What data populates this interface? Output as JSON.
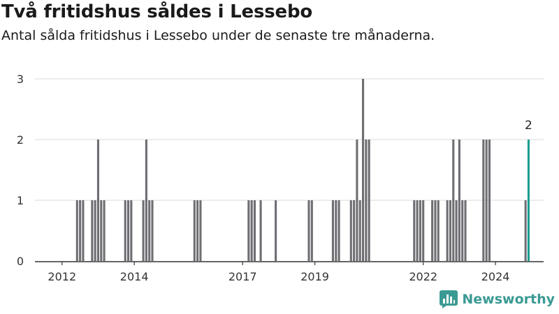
{
  "header": {
    "title": "Två fritidshus såldes i Lessebo",
    "subtitle": "Antal sålda fritidshus i Lessebo under de senaste tre månaderna."
  },
  "brand": {
    "name": "Newsworthy",
    "color": "#3a9a93"
  },
  "colors": {
    "bar": "#6e6e73",
    "highlight": "#1f9e92",
    "grid": "#d9d9d9",
    "axis": "#333333"
  },
  "chart_data": {
    "type": "bar",
    "title": "Två fritidshus såldes i Lessebo",
    "subtitle": "Antal sålda fritidshus i Lessebo under de senaste tre månaderna.",
    "xlabel": "",
    "ylabel": "",
    "x_unit": "month",
    "xlim": [
      "2011-04",
      "2025-05"
    ],
    "ylim": [
      0,
      3
    ],
    "y_ticks": [
      0,
      1,
      2,
      3
    ],
    "x_ticks": [
      {
        "label": "2012",
        "x": "2012-01"
      },
      {
        "label": "2014",
        "x": "2014-01"
      },
      {
        "label": "2017",
        "x": "2017-01"
      },
      {
        "label": "2019",
        "x": "2019-01"
      },
      {
        "label": "2022",
        "x": "2022-01"
      },
      {
        "label": "2024",
        "x": "2024-01"
      }
    ],
    "grid": true,
    "highlight": {
      "x": "2024-12",
      "y": 2,
      "label": "2"
    },
    "points": [
      {
        "x": "2012-06",
        "y": 1
      },
      {
        "x": "2012-07",
        "y": 1
      },
      {
        "x": "2012-08",
        "y": 1
      },
      {
        "x": "2012-11",
        "y": 1
      },
      {
        "x": "2012-12",
        "y": 1
      },
      {
        "x": "2013-01",
        "y": 2
      },
      {
        "x": "2013-02",
        "y": 1
      },
      {
        "x": "2013-03",
        "y": 1
      },
      {
        "x": "2013-10",
        "y": 1
      },
      {
        "x": "2013-11",
        "y": 1
      },
      {
        "x": "2013-12",
        "y": 1
      },
      {
        "x": "2014-04",
        "y": 1
      },
      {
        "x": "2014-05",
        "y": 2
      },
      {
        "x": "2014-06",
        "y": 1
      },
      {
        "x": "2014-07",
        "y": 1
      },
      {
        "x": "2015-09",
        "y": 1
      },
      {
        "x": "2015-10",
        "y": 1
      },
      {
        "x": "2015-11",
        "y": 1
      },
      {
        "x": "2017-03",
        "y": 1
      },
      {
        "x": "2017-04",
        "y": 1
      },
      {
        "x": "2017-05",
        "y": 1
      },
      {
        "x": "2017-07",
        "y": 1
      },
      {
        "x": "2017-12",
        "y": 1
      },
      {
        "x": "2018-11",
        "y": 1
      },
      {
        "x": "2018-12",
        "y": 1
      },
      {
        "x": "2019-07",
        "y": 1
      },
      {
        "x": "2019-08",
        "y": 1
      },
      {
        "x": "2019-09",
        "y": 1
      },
      {
        "x": "2020-01",
        "y": 1
      },
      {
        "x": "2020-02",
        "y": 1
      },
      {
        "x": "2020-03",
        "y": 2
      },
      {
        "x": "2020-04",
        "y": 1
      },
      {
        "x": "2020-05",
        "y": 3
      },
      {
        "x": "2020-06",
        "y": 2
      },
      {
        "x": "2020-07",
        "y": 2
      },
      {
        "x": "2021-10",
        "y": 1
      },
      {
        "x": "2021-11",
        "y": 1
      },
      {
        "x": "2021-12",
        "y": 1
      },
      {
        "x": "2022-01",
        "y": 1
      },
      {
        "x": "2022-04",
        "y": 1
      },
      {
        "x": "2022-05",
        "y": 1
      },
      {
        "x": "2022-06",
        "y": 1
      },
      {
        "x": "2022-09",
        "y": 1
      },
      {
        "x": "2022-10",
        "y": 1
      },
      {
        "x": "2022-11",
        "y": 2
      },
      {
        "x": "2022-12",
        "y": 1
      },
      {
        "x": "2023-01",
        "y": 2
      },
      {
        "x": "2023-02",
        "y": 1
      },
      {
        "x": "2023-03",
        "y": 1
      },
      {
        "x": "2023-09",
        "y": 2
      },
      {
        "x": "2023-10",
        "y": 2
      },
      {
        "x": "2023-11",
        "y": 2
      },
      {
        "x": "2024-11",
        "y": 1
      },
      {
        "x": "2024-12",
        "y": 2
      }
    ]
  }
}
